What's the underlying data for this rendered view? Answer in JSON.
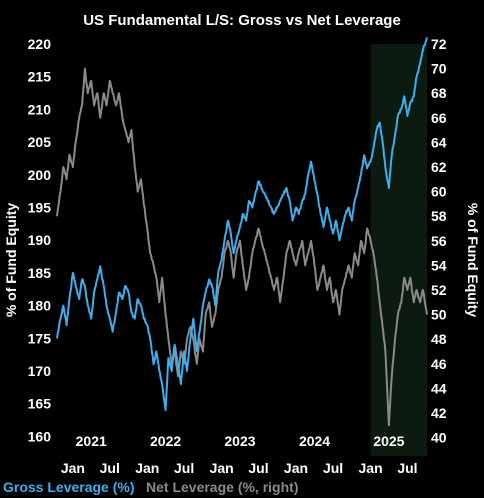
{
  "chart_data": {
    "type": "line",
    "title": "US Fundamental L/S: Gross vs Net Leverage",
    "ylabel_left": "% of Fund Equity",
    "ylabel_right": "% of Fund Equity",
    "ylim_left": [
      157,
      220
    ],
    "ylim_right": [
      38.5,
      72
    ],
    "yticks_left": [
      160,
      165,
      170,
      175,
      180,
      185,
      190,
      195,
      200,
      205,
      210,
      215,
      220
    ],
    "yticks_right": [
      40,
      42,
      44,
      46,
      48,
      50,
      52,
      54,
      56,
      58,
      60,
      62,
      64,
      66,
      68,
      70,
      72
    ],
    "xlim": [
      "2020-10-15",
      "2025-10-05"
    ],
    "xtick_labels": [
      {
        "date": "2021-01-01",
        "label": "Jan"
      },
      {
        "date": "2021-07-01",
        "label": "Jul"
      },
      {
        "date": "2022-01-01",
        "label": "Jan"
      },
      {
        "date": "2022-07-01",
        "label": "Jul"
      },
      {
        "date": "2023-01-01",
        "label": "Jan"
      },
      {
        "date": "2023-07-01",
        "label": "Jul"
      },
      {
        "date": "2024-01-01",
        "label": "Jan"
      },
      {
        "date": "2024-07-01",
        "label": "Jul"
      },
      {
        "date": "2025-01-01",
        "label": "Jan"
      },
      {
        "date": "2025-07-01",
        "label": "Jul"
      }
    ],
    "year_labels": [
      {
        "date": "2021-04-01",
        "label": "2021"
      },
      {
        "date": "2022-04-01",
        "label": "2022"
      },
      {
        "date": "2023-04-01",
        "label": "2023"
      },
      {
        "date": "2024-04-01",
        "label": "2024"
      },
      {
        "date": "2025-04-01",
        "label": "2025"
      }
    ],
    "shaded_region": [
      "2025-01-01",
      "2025-10-05"
    ],
    "grid": false,
    "legend_position": "bottom-left",
    "series": [
      {
        "name": "Gross Leverage (%)",
        "axis": "left",
        "color": "#3ab0f0",
        "points": [
          [
            "2020-10-15",
            175
          ],
          [
            "2020-11-01",
            178
          ],
          [
            "2020-11-15",
            180
          ],
          [
            "2020-12-01",
            177
          ],
          [
            "2020-12-15",
            181
          ],
          [
            "2021-01-01",
            185
          ],
          [
            "2021-01-15",
            183
          ],
          [
            "2021-02-01",
            181
          ],
          [
            "2021-02-15",
            184
          ],
          [
            "2021-03-01",
            183
          ],
          [
            "2021-03-15",
            180
          ],
          [
            "2021-04-01",
            178
          ],
          [
            "2021-04-15",
            182
          ],
          [
            "2021-05-01",
            184
          ],
          [
            "2021-05-15",
            186
          ],
          [
            "2021-06-01",
            183
          ],
          [
            "2021-06-15",
            180
          ],
          [
            "2021-07-01",
            178
          ],
          [
            "2021-07-15",
            176
          ],
          [
            "2021-08-01",
            179
          ],
          [
            "2021-08-15",
            182
          ],
          [
            "2021-09-01",
            181
          ],
          [
            "2021-09-15",
            183
          ],
          [
            "2021-10-01",
            182
          ],
          [
            "2021-10-15",
            179
          ],
          [
            "2021-11-01",
            178
          ],
          [
            "2021-11-15",
            181
          ],
          [
            "2021-12-01",
            180
          ],
          [
            "2021-12-15",
            178
          ],
          [
            "2022-01-01",
            177
          ],
          [
            "2022-01-15",
            175
          ],
          [
            "2022-02-01",
            171
          ],
          [
            "2022-02-15",
            173
          ],
          [
            "2022-03-01",
            170
          ],
          [
            "2022-03-15",
            168
          ],
          [
            "2022-04-01",
            164
          ],
          [
            "2022-04-15",
            172
          ],
          [
            "2022-05-01",
            170
          ],
          [
            "2022-05-15",
            174
          ],
          [
            "2022-06-01",
            171
          ],
          [
            "2022-06-15",
            168
          ],
          [
            "2022-07-01",
            173
          ],
          [
            "2022-07-15",
            170
          ],
          [
            "2022-08-01",
            175
          ],
          [
            "2022-08-15",
            178
          ],
          [
            "2022-09-01",
            173
          ],
          [
            "2022-09-15",
            176
          ],
          [
            "2022-10-01",
            180
          ],
          [
            "2022-10-15",
            182
          ],
          [
            "2022-11-01",
            184
          ],
          [
            "2022-11-15",
            183
          ],
          [
            "2022-12-01",
            180
          ],
          [
            "2022-12-15",
            185
          ],
          [
            "2023-01-01",
            187
          ],
          [
            "2023-01-15",
            190
          ],
          [
            "2023-02-01",
            193
          ],
          [
            "2023-02-15",
            191
          ],
          [
            "2023-03-01",
            188
          ],
          [
            "2023-03-15",
            190
          ],
          [
            "2023-04-01",
            192
          ],
          [
            "2023-04-15",
            194
          ],
          [
            "2023-05-01",
            193
          ],
          [
            "2023-05-15",
            196
          ],
          [
            "2023-06-01",
            195
          ],
          [
            "2023-06-15",
            197
          ],
          [
            "2023-07-01",
            199
          ],
          [
            "2023-07-15",
            198
          ],
          [
            "2023-08-01",
            197
          ],
          [
            "2023-08-15",
            196
          ],
          [
            "2023-09-01",
            195
          ],
          [
            "2023-09-15",
            194
          ],
          [
            "2023-10-01",
            195
          ],
          [
            "2023-10-15",
            196
          ],
          [
            "2023-11-01",
            197
          ],
          [
            "2023-11-15",
            198
          ],
          [
            "2023-12-01",
            196
          ],
          [
            "2023-12-15",
            193
          ],
          [
            "2024-01-01",
            195
          ],
          [
            "2024-01-15",
            194
          ],
          [
            "2024-02-01",
            196
          ],
          [
            "2024-02-15",
            197
          ],
          [
            "2024-03-01",
            200
          ],
          [
            "2024-03-15",
            202
          ],
          [
            "2024-04-01",
            199
          ],
          [
            "2024-04-15",
            197
          ],
          [
            "2024-05-01",
            194
          ],
          [
            "2024-05-15",
            192
          ],
          [
            "2024-06-01",
            195
          ],
          [
            "2024-06-15",
            193
          ],
          [
            "2024-07-01",
            191
          ],
          [
            "2024-07-15",
            193
          ],
          [
            "2024-08-01",
            190
          ],
          [
            "2024-08-15",
            192
          ],
          [
            "2024-09-01",
            194
          ],
          [
            "2024-09-15",
            195
          ],
          [
            "2024-10-01",
            193
          ],
          [
            "2024-10-15",
            196
          ],
          [
            "2024-11-01",
            198
          ],
          [
            "2024-11-15",
            200
          ],
          [
            "2024-12-01",
            203
          ],
          [
            "2024-12-15",
            201
          ],
          [
            "2025-01-01",
            202
          ],
          [
            "2025-01-15",
            204
          ],
          [
            "2025-02-01",
            207
          ],
          [
            "2025-02-15",
            208
          ],
          [
            "2025-03-01",
            205
          ],
          [
            "2025-03-15",
            201
          ],
          [
            "2025-04-01",
            198
          ],
          [
            "2025-04-15",
            203
          ],
          [
            "2025-05-01",
            206
          ],
          [
            "2025-05-15",
            209
          ],
          [
            "2025-06-01",
            210
          ],
          [
            "2025-06-15",
            212
          ],
          [
            "2025-07-01",
            209
          ],
          [
            "2025-07-15",
            211
          ],
          [
            "2025-08-01",
            212
          ],
          [
            "2025-08-15",
            215
          ],
          [
            "2025-09-01",
            217
          ],
          [
            "2025-09-15",
            219
          ],
          [
            "2025-10-05",
            221
          ]
        ]
      },
      {
        "name": "Net Leverage (%, right)",
        "axis": "right",
        "color": "#8a8a8a",
        "points": [
          [
            "2020-10-15",
            58
          ],
          [
            "2020-11-01",
            60
          ],
          [
            "2020-11-15",
            62
          ],
          [
            "2020-12-01",
            61
          ],
          [
            "2020-12-15",
            63
          ],
          [
            "2021-01-01",
            62
          ],
          [
            "2021-01-15",
            64
          ],
          [
            "2021-02-01",
            66
          ],
          [
            "2021-02-15",
            67
          ],
          [
            "2021-03-01",
            70
          ],
          [
            "2021-03-15",
            68
          ],
          [
            "2021-04-01",
            69
          ],
          [
            "2021-04-15",
            67
          ],
          [
            "2021-05-01",
            68
          ],
          [
            "2021-05-15",
            66
          ],
          [
            "2021-06-01",
            68
          ],
          [
            "2021-06-15",
            67
          ],
          [
            "2021-07-01",
            69
          ],
          [
            "2021-07-15",
            68
          ],
          [
            "2021-08-01",
            67
          ],
          [
            "2021-08-15",
            68
          ],
          [
            "2021-09-01",
            66
          ],
          [
            "2021-09-15",
            65
          ],
          [
            "2021-10-01",
            64
          ],
          [
            "2021-10-15",
            65
          ],
          [
            "2021-11-01",
            62
          ],
          [
            "2021-11-15",
            60
          ],
          [
            "2021-12-01",
            61
          ],
          [
            "2021-12-15",
            59
          ],
          [
            "2022-01-01",
            57
          ],
          [
            "2022-01-15",
            55
          ],
          [
            "2022-02-01",
            54
          ],
          [
            "2022-02-15",
            53
          ],
          [
            "2022-03-01",
            51
          ],
          [
            "2022-03-15",
            53
          ],
          [
            "2022-04-01",
            50
          ],
          [
            "2022-04-15",
            48
          ],
          [
            "2022-05-01",
            46
          ],
          [
            "2022-05-15",
            47
          ],
          [
            "2022-06-01",
            45
          ],
          [
            "2022-06-15",
            47
          ],
          [
            "2022-07-01",
            46
          ],
          [
            "2022-07-15",
            48
          ],
          [
            "2022-08-01",
            49
          ],
          [
            "2022-08-15",
            48
          ],
          [
            "2022-09-01",
            46
          ],
          [
            "2022-09-15",
            48
          ],
          [
            "2022-10-01",
            47
          ],
          [
            "2022-10-15",
            50
          ],
          [
            "2022-11-01",
            51
          ],
          [
            "2022-11-15",
            49
          ],
          [
            "2022-12-01",
            50
          ],
          [
            "2022-12-15",
            52
          ],
          [
            "2023-01-01",
            53
          ],
          [
            "2023-01-15",
            55
          ],
          [
            "2023-02-01",
            56
          ],
          [
            "2023-02-15",
            55
          ],
          [
            "2023-03-01",
            53
          ],
          [
            "2023-03-15",
            55
          ],
          [
            "2023-04-01",
            56
          ],
          [
            "2023-04-15",
            54
          ],
          [
            "2023-05-01",
            52
          ],
          [
            "2023-05-15",
            53
          ],
          [
            "2023-06-01",
            55
          ],
          [
            "2023-06-15",
            56
          ],
          [
            "2023-07-01",
            57
          ],
          [
            "2023-07-15",
            56
          ],
          [
            "2023-08-01",
            55
          ],
          [
            "2023-08-15",
            54
          ],
          [
            "2023-09-01",
            53
          ],
          [
            "2023-09-15",
            52
          ],
          [
            "2023-10-01",
            53
          ],
          [
            "2023-10-15",
            51
          ],
          [
            "2023-11-01",
            53
          ],
          [
            "2023-11-15",
            55
          ],
          [
            "2023-12-01",
            56
          ],
          [
            "2023-12-15",
            55
          ],
          [
            "2024-01-01",
            54
          ],
          [
            "2024-01-15",
            55
          ],
          [
            "2024-02-01",
            56
          ],
          [
            "2024-02-15",
            54
          ],
          [
            "2024-03-01",
            55
          ],
          [
            "2024-03-15",
            56
          ],
          [
            "2024-04-01",
            54
          ],
          [
            "2024-04-15",
            52
          ],
          [
            "2024-05-01",
            53
          ],
          [
            "2024-05-15",
            54
          ],
          [
            "2024-06-01",
            52
          ],
          [
            "2024-06-15",
            53
          ],
          [
            "2024-07-01",
            51
          ],
          [
            "2024-07-15",
            52
          ],
          [
            "2024-08-01",
            50
          ],
          [
            "2024-08-15",
            52
          ],
          [
            "2024-09-01",
            53
          ],
          [
            "2024-09-15",
            54
          ],
          [
            "2024-10-01",
            53
          ],
          [
            "2024-10-15",
            55
          ],
          [
            "2024-11-01",
            54
          ],
          [
            "2024-11-15",
            56
          ],
          [
            "2024-12-01",
            55
          ],
          [
            "2024-12-15",
            57
          ],
          [
            "2025-01-01",
            56
          ],
          [
            "2025-01-15",
            55
          ],
          [
            "2025-02-01",
            53
          ],
          [
            "2025-02-15",
            51
          ],
          [
            "2025-03-01",
            49
          ],
          [
            "2025-03-15",
            47
          ],
          [
            "2025-04-01",
            41
          ],
          [
            "2025-04-15",
            45
          ],
          [
            "2025-05-01",
            48
          ],
          [
            "2025-05-15",
            50
          ],
          [
            "2025-06-01",
            51
          ],
          [
            "2025-06-15",
            53
          ],
          [
            "2025-07-01",
            52
          ],
          [
            "2025-07-15",
            53
          ],
          [
            "2025-08-01",
            51
          ],
          [
            "2025-08-15",
            52
          ],
          [
            "2025-09-01",
            51
          ],
          [
            "2025-09-15",
            52
          ],
          [
            "2025-10-05",
            50
          ]
        ]
      }
    ]
  }
}
